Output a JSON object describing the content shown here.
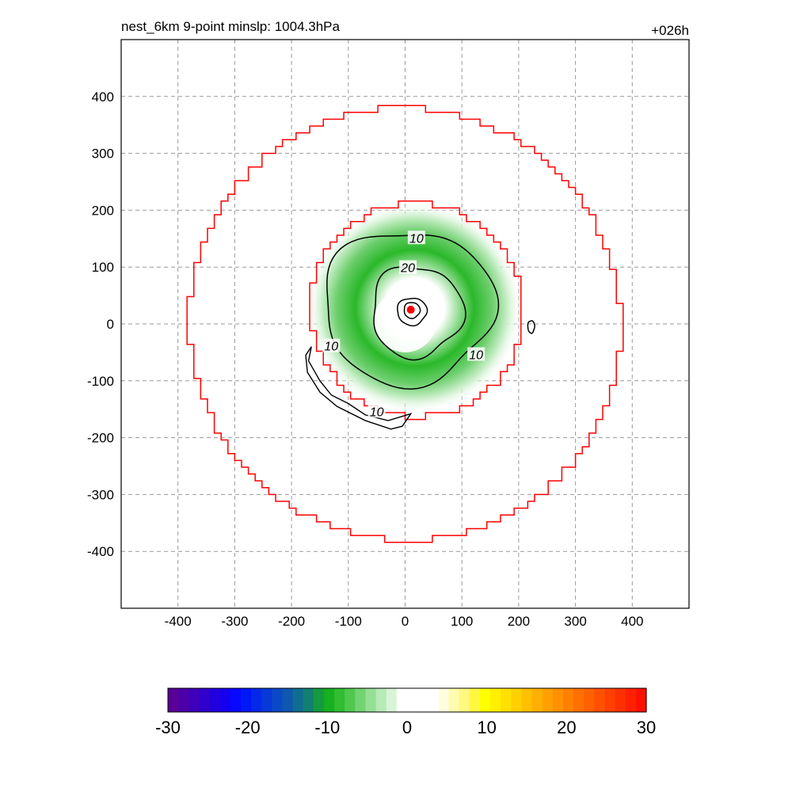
{
  "chart_data": {
    "type": "contour",
    "title": "nest_6km  9-point minslp: 1004.3hPa",
    "title_right": "+026h",
    "xlim": [
      -500,
      500
    ],
    "ylim": [
      -500,
      500
    ],
    "x_ticks": [
      -400,
      -300,
      -200,
      -100,
      0,
      100,
      200,
      300,
      400
    ],
    "y_ticks": [
      -400,
      -300,
      -200,
      -100,
      0,
      100,
      200,
      300,
      400
    ],
    "grid": true,
    "grid_style": "dashed",
    "center_marker": {
      "x": 10,
      "y": 25,
      "color": "#ff0000"
    },
    "boundaries": [
      {
        "name": "",
        "color": "#ff0000",
        "radius": 380,
        "center": [
          0,
          0
        ]
      },
      {
        "name": "",
        "color": "#ff0000",
        "radius": 188,
        "center": [
          20,
          25
        ]
      }
    ],
    "shading": {
      "color_high": "#22b822",
      "color_low": "#dff3df",
      "peak_center": [
        25,
        20
      ],
      "peak_radius": 100
    },
    "contours": [
      {
        "level": 10,
        "label": "10",
        "color": "#000000"
      },
      {
        "level": 20,
        "label": "20",
        "color": "#000000"
      }
    ],
    "contour_labels": [
      {
        "text": "10",
        "x": 20,
        "y": 150
      },
      {
        "text": "20",
        "x": 5,
        "y": 98
      },
      {
        "text": "10",
        "x": -130,
        "y": -40
      },
      {
        "text": "10",
        "x": 125,
        "y": -55
      },
      {
        "text": "10",
        "x": -50,
        "y": -155
      }
    ],
    "colorbar": {
      "min": -30,
      "max": 30,
      "tick_labels": [
        "-30",
        "-20",
        "-10",
        "0",
        "10",
        "20",
        "30"
      ],
      "tick_values": [
        -30,
        -20,
        -10,
        0,
        10,
        20,
        30
      ],
      "colors": [
        "#5a0096",
        "#4c00a8",
        "#3e00ba",
        "#3000cc",
        "#2200dd",
        "#1500ee",
        "#0808ff",
        "#0018f8",
        "#0528e8",
        "#0838d8",
        "#0b48c8",
        "#0e58b0",
        "#106c90",
        "#128070",
        "#149a40",
        "#16b020",
        "#30bd30",
        "#50c850",
        "#72d372",
        "#94df94",
        "#b6eab6",
        "#d8f4d8",
        "#ffffff",
        "#ffffff",
        "#ffffff",
        "#ffffff",
        "#fffde0",
        "#fffbb0",
        "#fff980",
        "#fff840",
        "#ffff00",
        "#fff000",
        "#ffe000",
        "#ffd000",
        "#ffc000",
        "#ffb000",
        "#ffa000",
        "#ff9000",
        "#ff8000",
        "#ff7000",
        "#ff6000",
        "#ff5000",
        "#ff4000",
        "#ff3000",
        "#ff2000",
        "#ff1000"
      ]
    }
  }
}
